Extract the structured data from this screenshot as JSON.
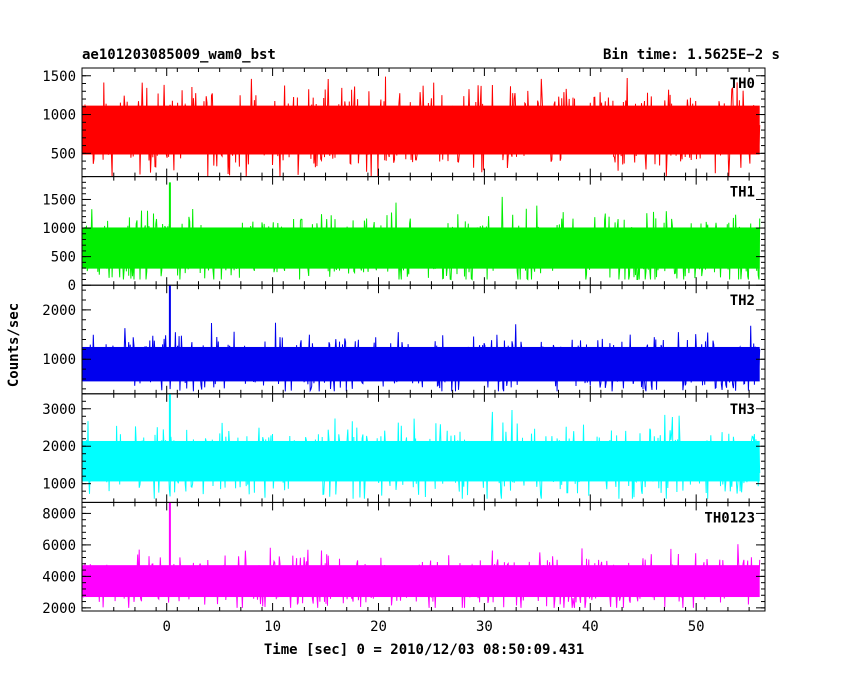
{
  "chart_data": {
    "type": "line",
    "title_left": "ae101203085009_wam0_bst",
    "title_right": "Bin time: 1.5625E−2 s",
    "xlabel": "Time [sec] 0 = 2010/12/03 08:50:09.431",
    "ylabel": "Counts/sec",
    "xlim": [
      -8,
      56.5
    ],
    "x_ticks": [
      0,
      10,
      20,
      30,
      40,
      50
    ],
    "x_data_range": [
      -8,
      56
    ],
    "bin_time": 0.015625,
    "grid": false,
    "panels": [
      {
        "name": "TH0",
        "color": "#ff0000",
        "ylim": [
          200,
          1600
        ],
        "y_ticks": [
          500,
          1000,
          1500
        ],
        "approx_mean": 800,
        "approx_low": 200,
        "approx_high": 1600,
        "spikes": []
      },
      {
        "name": "TH1",
        "color": "#00ee00",
        "ylim": [
          0,
          1900
        ],
        "y_ticks": [
          0,
          500,
          1000,
          1500
        ],
        "approx_mean": 650,
        "approx_low": 100,
        "approx_high": 1700,
        "spikes": [
          {
            "x": 0.3,
            "y": 1800
          }
        ]
      },
      {
        "name": "TH2",
        "color": "#0000ee",
        "ylim": [
          300,
          2500
        ],
        "y_ticks": [
          1000,
          2000
        ],
        "approx_mean": 900,
        "approx_low": 350,
        "approx_high": 1900,
        "spikes": [
          {
            "x": 0.3,
            "y": 2500
          }
        ]
      },
      {
        "name": "TH3",
        "color": "#00ffff",
        "ylim": [
          500,
          3400
        ],
        "y_ticks": [
          1000,
          2000,
          3000
        ],
        "approx_mean": 1600,
        "approx_low": 600,
        "approx_high": 3000,
        "spikes": [
          {
            "x": 0.3,
            "y": 3400
          }
        ]
      },
      {
        "name": "TH0123",
        "color": "#ff00ff",
        "ylim": [
          1800,
          8700
        ],
        "y_ticks": [
          2000,
          4000,
          6000,
          8000
        ],
        "approx_mean": 3700,
        "approx_low": 2000,
        "approx_high": 6500,
        "spikes": [
          {
            "x": 0.3,
            "y": 8700
          }
        ]
      }
    ]
  }
}
